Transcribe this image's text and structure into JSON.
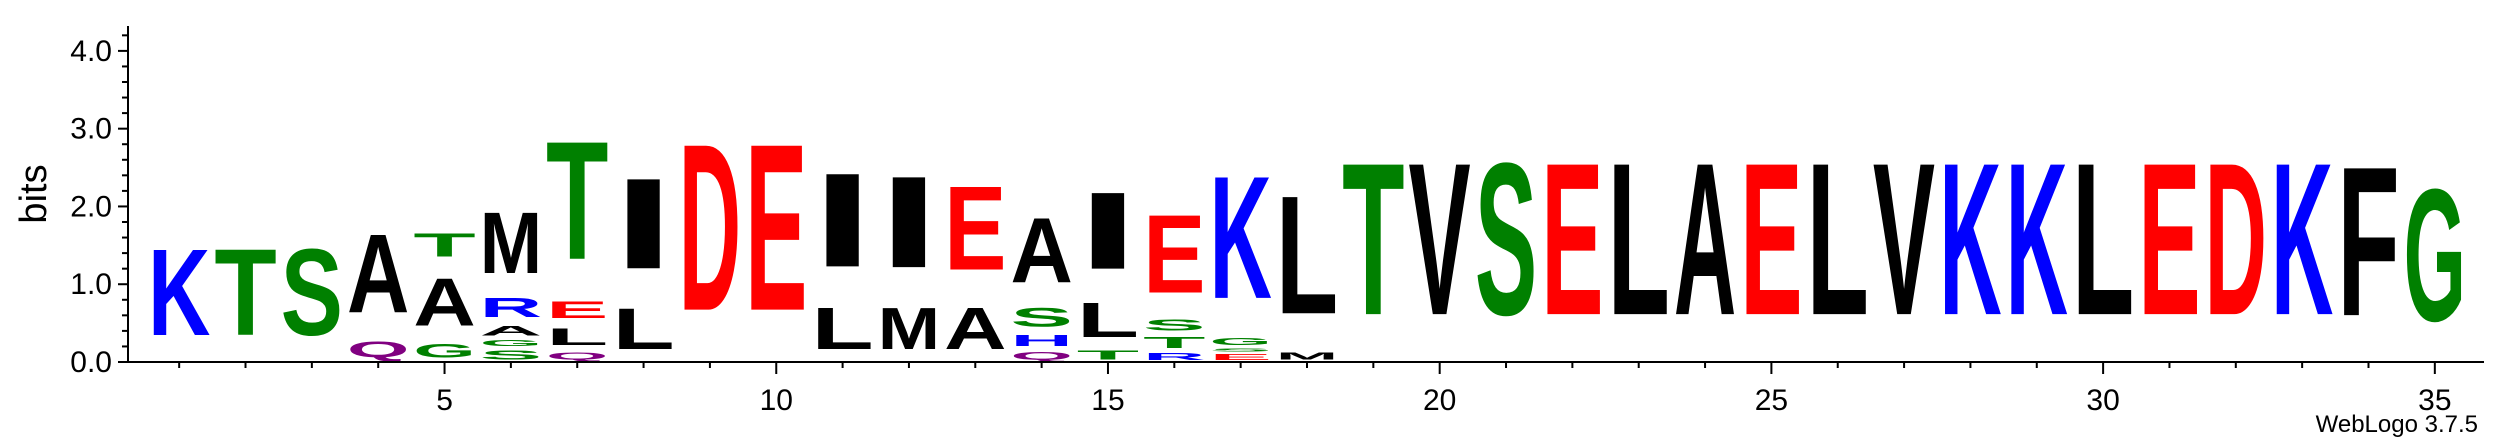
{
  "chart_data": {
    "type": "sequence-logo",
    "ylabel": "bits",
    "ylim": [
      0,
      4.32
    ],
    "y_ticks": [
      "0.0",
      "1.0",
      "2.0",
      "3.0",
      "4.0"
    ],
    "x_ticks": [
      "5",
      "10",
      "15",
      "20",
      "25",
      "30",
      "35"
    ],
    "x_tick_values": [
      5,
      10,
      15,
      20,
      25,
      30,
      35
    ],
    "positions": [
      1,
      2,
      3,
      4,
      5,
      6,
      7,
      8,
      9,
      10,
      11,
      12,
      13,
      14,
      15,
      16,
      17,
      18,
      19,
      20,
      21,
      22,
      23,
      24,
      25,
      26,
      27,
      28,
      29,
      30,
      31,
      32,
      33,
      34,
      35
    ],
    "stacks": [
      [
        {
          "letter": "K",
          "bits": 1.78
        }
      ],
      [
        {
          "letter": "T",
          "bits": 1.78
        }
      ],
      [
        {
          "letter": "S",
          "bits": 1.78
        }
      ],
      [
        {
          "letter": "Q",
          "bits": 0.32
        },
        {
          "letter": "A",
          "bits": 1.62
        }
      ],
      [
        {
          "letter": "G",
          "bits": 0.28
        },
        {
          "letter": "A",
          "bits": 0.98
        },
        {
          "letter": "T",
          "bits": 0.48
        }
      ],
      [
        {
          "letter": "S",
          "bits": 0.18
        },
        {
          "letter": "G",
          "bits": 0.12
        },
        {
          "letter": "A",
          "bits": 0.2
        },
        {
          "letter": "R",
          "bits": 0.4
        },
        {
          "letter": "M",
          "bits": 1.26
        }
      ],
      [
        {
          "letter": "Q",
          "bits": 0.15
        },
        {
          "letter": "L",
          "bits": 0.35
        },
        {
          "letter": "E",
          "bits": 0.35
        },
        {
          "letter": "T",
          "bits": 2.43
        }
      ],
      [
        {
          "letter": "L",
          "bits": 0.84
        },
        {
          "letter": "I",
          "bits": 1.86
        }
      ],
      [
        {
          "letter": "D",
          "bits": 3.43
        }
      ],
      [
        {
          "letter": "E",
          "bits": 3.43
        }
      ],
      [
        {
          "letter": "L",
          "bits": 0.85
        },
        {
          "letter": "I",
          "bits": 1.93
        }
      ],
      [
        {
          "letter": "M",
          "bits": 0.85
        },
        {
          "letter": "I",
          "bits": 1.88
        }
      ],
      [
        {
          "letter": "A",
          "bits": 0.85
        },
        {
          "letter": "E",
          "bits": 1.72
        }
      ],
      [
        {
          "letter": "Q",
          "bits": 0.16
        },
        {
          "letter": "H",
          "bits": 0.22
        },
        {
          "letter": "S",
          "bits": 0.38
        },
        {
          "letter": "A",
          "bits": 1.33
        }
      ],
      [
        {
          "letter": "T",
          "bits": 0.18
        },
        {
          "letter": "L",
          "bits": 0.71
        },
        {
          "letter": "I",
          "bits": 1.58
        }
      ],
      [
        {
          "letter": "R",
          "bits": 0.14
        },
        {
          "letter": "T",
          "bits": 0.22
        },
        {
          "letter": "S",
          "bits": 0.22
        },
        {
          "letter": "E",
          "bits": 1.61
        }
      ],
      [
        {
          "letter": "E",
          "bits": 0.12
        },
        {
          "letter": "S",
          "bits": 0.07
        },
        {
          "letter": "G",
          "bits": 0.14
        },
        {
          "letter": "K",
          "bits": 2.52
        }
      ],
      [
        {
          "letter": "M",
          "bits": 0.15
        },
        {
          "letter": "L",
          "bits": 2.43
        }
      ],
      [
        {
          "letter": "T",
          "bits": 3.13
        }
      ],
      [
        {
          "letter": "V",
          "bits": 3.13
        }
      ],
      [
        {
          "letter": "S",
          "bits": 3.13
        }
      ],
      [
        {
          "letter": "E",
          "bits": 3.13
        }
      ],
      [
        {
          "letter": "L",
          "bits": 3.13
        }
      ],
      [
        {
          "letter": "A",
          "bits": 3.13
        }
      ],
      [
        {
          "letter": "E",
          "bits": 3.13
        }
      ],
      [
        {
          "letter": "L",
          "bits": 3.13
        }
      ],
      [
        {
          "letter": "V",
          "bits": 3.13
        }
      ],
      [
        {
          "letter": "K",
          "bits": 3.13
        }
      ],
      [
        {
          "letter": "K",
          "bits": 3.13
        }
      ],
      [
        {
          "letter": "L",
          "bits": 3.13
        }
      ],
      [
        {
          "letter": "E",
          "bits": 3.13
        }
      ],
      [
        {
          "letter": "D",
          "bits": 3.13
        }
      ],
      [
        {
          "letter": "K",
          "bits": 3.13
        }
      ],
      [
        {
          "letter": "F",
          "bits": 3.07
        }
      ],
      [
        {
          "letter": "G",
          "bits": 2.72
        }
      ]
    ],
    "letter_colors": {
      "D": "#ff0000",
      "E": "#ff0000",
      "K": "#0000ff",
      "R": "#0000ff",
      "H": "#0000ff",
      "S": "#008000",
      "T": "#008000",
      "G": "#008000",
      "Y": "#008000",
      "C": "#008000",
      "Q": "#800080",
      "N": "#800080",
      "A": "#000000",
      "L": "#000000",
      "I": "#000000",
      "M": "#000000",
      "V": "#000000",
      "F": "#000000",
      "P": "#000000",
      "W": "#000000"
    },
    "grid": false,
    "footer": "WebLogo 3.7.5"
  }
}
